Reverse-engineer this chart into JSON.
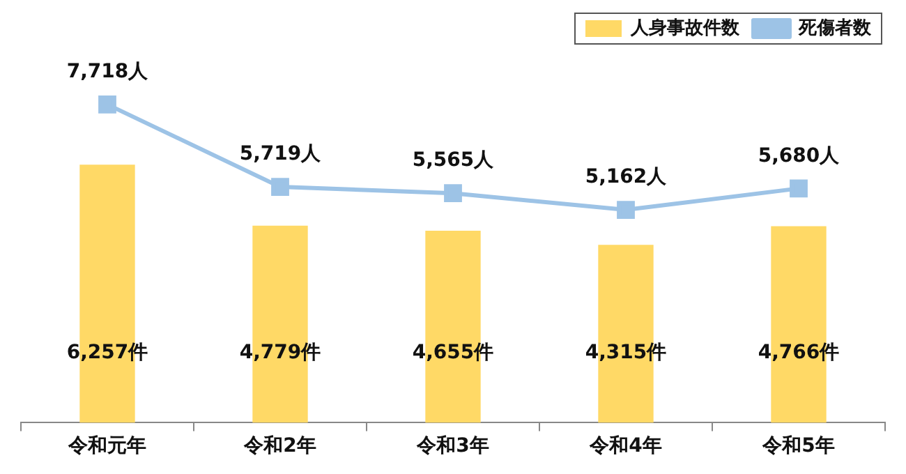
{
  "chart_data": {
    "type": "bar",
    "categories": [
      "令和元年",
      "令和2年",
      "令和3年",
      "令和4年",
      "令和5年"
    ],
    "series": [
      {
        "name": "人身事故件数",
        "color": "#ffd966",
        "values": [
          6257,
          4779,
          4655,
          4315,
          4766
        ],
        "value_labels": [
          "6,257件",
          "4,779件",
          "4,655件",
          "4,315件",
          "4,766件"
        ]
      },
      {
        "name": "死傷者数",
        "type": "line",
        "color": "#9dc3e6",
        "marker": "square",
        "values": [
          7718,
          5719,
          5565,
          5162,
          5680
        ],
        "value_labels": [
          "7,718人",
          "5,719人",
          "5,565人",
          "5,162人",
          "5,680人"
        ]
      }
    ],
    "tick_labels": "x",
    "grid": false,
    "legend": "top right"
  }
}
